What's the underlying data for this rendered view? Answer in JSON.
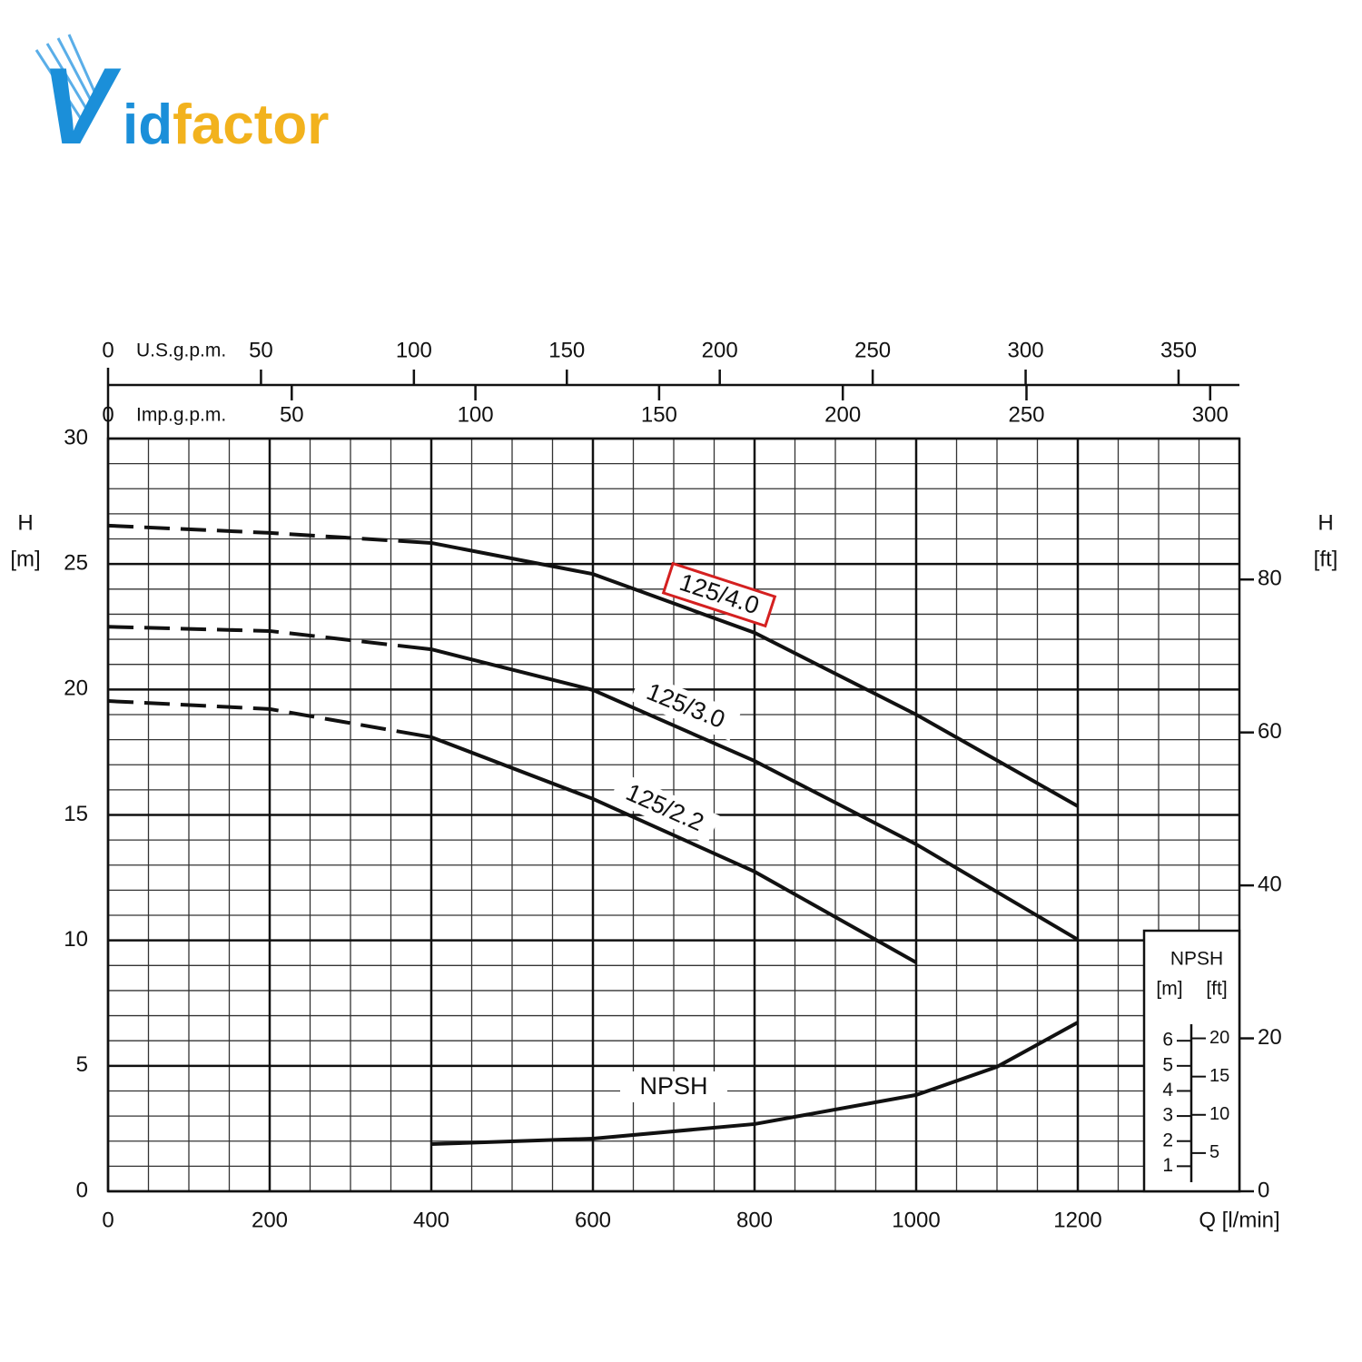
{
  "logo": {
    "parts": [
      "V",
      "id",
      "factor"
    ]
  },
  "chart_data": {
    "type": "line",
    "xlabel": "Q [l/min]",
    "ylabel": {
      "symbol": "H",
      "unit": "[m]"
    },
    "y2label": {
      "symbol": "H",
      "unit": "[ft]"
    },
    "xlim": [
      0,
      1400
    ],
    "xticks": [
      0,
      200,
      400,
      600,
      800,
      1000,
      1200
    ],
    "ylim": [
      0,
      30
    ],
    "yticks": [
      0,
      5,
      10,
      15,
      20,
      25,
      30
    ],
    "y2lim": [
      0,
      98.43
    ],
    "y2ticks": [
      0,
      20,
      40,
      60,
      80
    ],
    "grid": true,
    "minor_grid": {
      "x": 50,
      "y": 1
    },
    "top_axes": [
      {
        "label": "U.S.g.p.m.",
        "lim": [
          0,
          369.9
        ],
        "ticks": [
          0,
          50,
          100,
          150,
          200,
          250,
          300,
          350
        ]
      },
      {
        "label": "Imp.g.p.m.",
        "lim": [
          0,
          307.96
        ],
        "ticks": [
          0,
          50,
          100,
          150,
          200,
          250,
          300
        ]
      }
    ],
    "npsh_scale": {
      "title": "NPSH",
      "unit_m": "[m]",
      "unit_ft": "[ft]",
      "m_ticks": [
        1,
        2,
        3,
        4,
        5,
        6
      ],
      "ft_ticks": [
        5,
        10,
        15,
        20
      ]
    },
    "series": [
      {
        "name": "125/4.0",
        "color": "#111111",
        "highlight_color": "#d42020",
        "dashed_below_x": 400,
        "x": [
          0,
          200,
          400,
          600,
          800,
          1000,
          1200
        ],
        "values": [
          26.53,
          26.24,
          25.84,
          24.6,
          22.26,
          19.0,
          15.35
        ]
      },
      {
        "name": "125/3.0",
        "color": "#111111",
        "dashed_below_x": 400,
        "x": [
          0,
          200,
          400,
          600,
          800,
          1000,
          1200
        ],
        "values": [
          22.5,
          22.33,
          21.6,
          19.98,
          17.15,
          13.83,
          10.03
        ]
      },
      {
        "name": "125/2.2",
        "color": "#111111",
        "dashed_below_x": 400,
        "x": [
          0,
          200,
          400,
          600,
          800,
          1000
        ],
        "values": [
          19.54,
          19.22,
          18.1,
          15.64,
          12.74,
          9.12
        ]
      },
      {
        "name": "NPSH",
        "color": "#111111",
        "x": [
          400,
          600,
          800,
          1000,
          1100,
          1200
        ],
        "values": [
          1.88,
          2.1,
          2.68,
          3.84,
          4.96,
          6.73
        ]
      }
    ]
  }
}
